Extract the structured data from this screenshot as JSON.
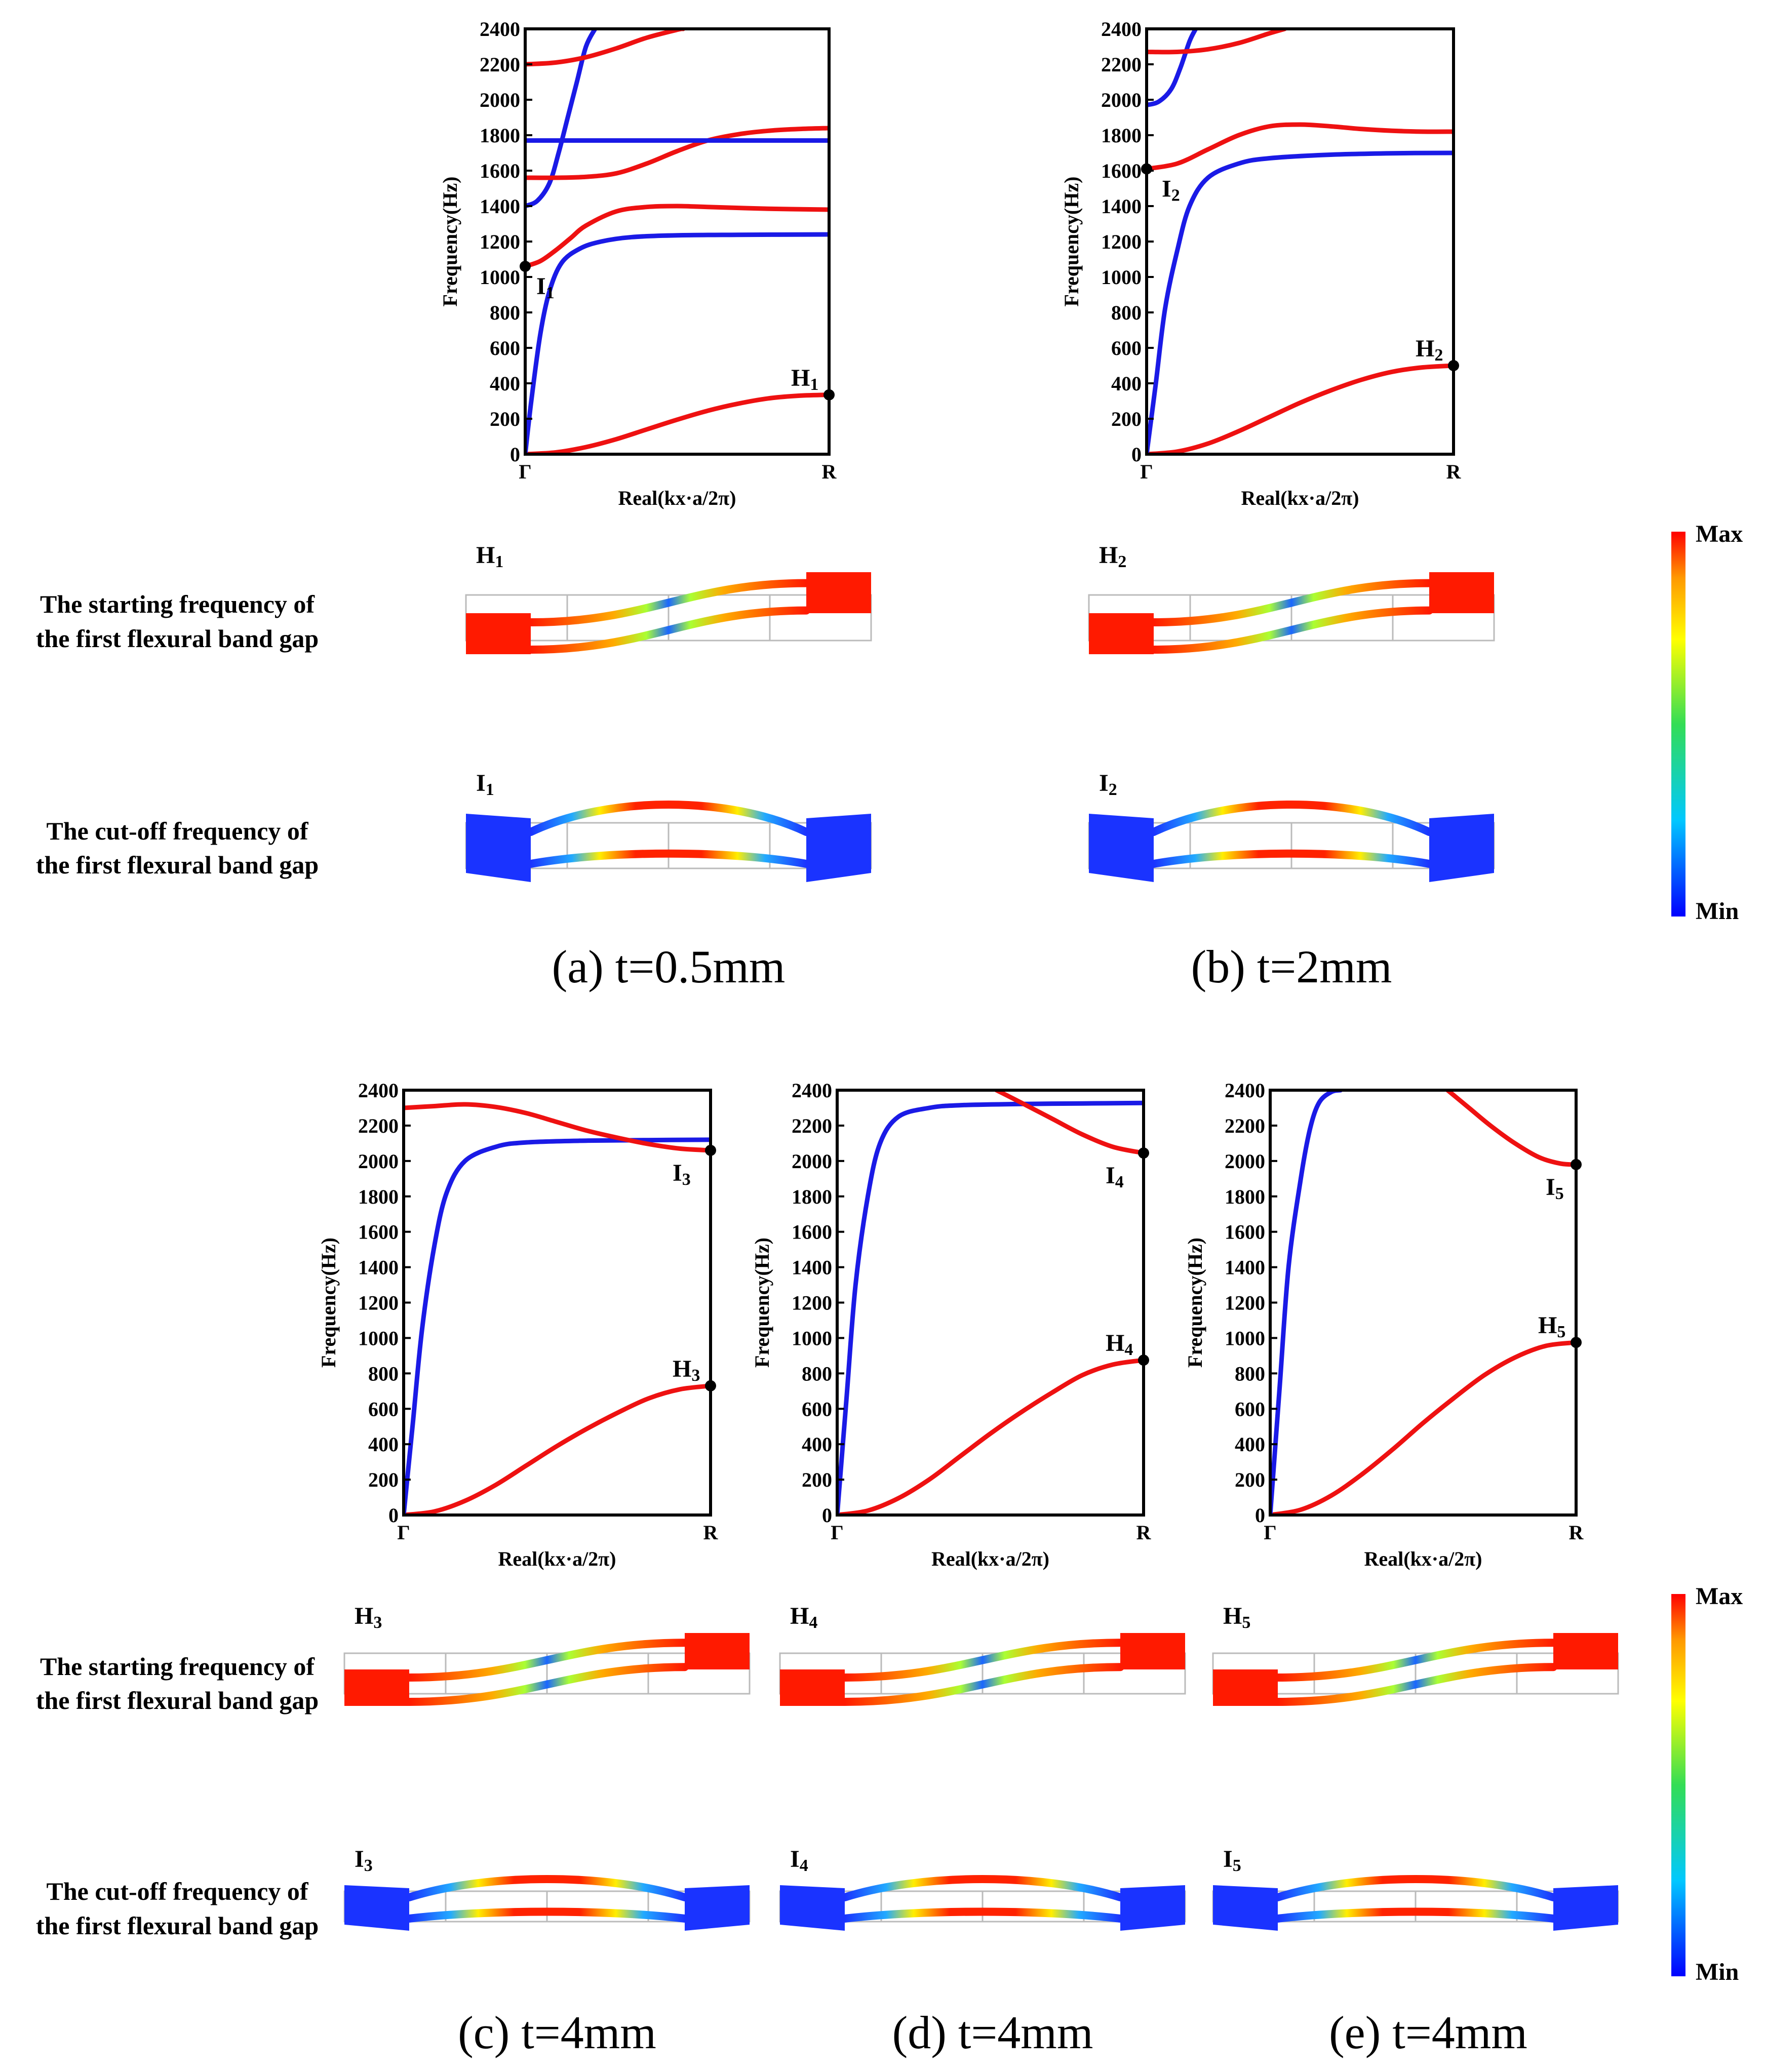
{
  "colors": {
    "series1": "#ee1111",
    "series2": "#1a1ae6",
    "axis": "#000000"
  },
  "row_labels": {
    "start_line1": "The starting frequency of",
    "start_line2": "the first flexural band gap",
    "cut_line1": "The cut-off frequency of",
    "cut_line2": "the first flexural band gap"
  },
  "colorbar": {
    "max": "Max",
    "min": "Min"
  },
  "mode_labels": {
    "H": [
      "H",
      "H",
      "H",
      "H",
      "H"
    ],
    "I": [
      "I",
      "I",
      "I",
      "I",
      "I"
    ],
    "subs": [
      "1",
      "2",
      "3",
      "4",
      "5"
    ]
  },
  "chart_data": [
    {
      "type": "line",
      "caption": "(a) t=0.5mm",
      "ylabel": "Frequency(Hz)",
      "xlabel": "Real(kx·a/2π)",
      "xticks": [
        "Γ",
        "R"
      ],
      "xlim": [
        0,
        1
      ],
      "ylim": [
        0,
        2400
      ],
      "yticks": [
        0,
        200,
        400,
        600,
        800,
        1000,
        1200,
        1400,
        1600,
        1800,
        2000,
        2200,
        2400
      ],
      "series": [
        {
          "name": "red-1",
          "color": "red",
          "x": [
            0,
            0.1,
            0.2,
            0.3,
            0.4,
            0.5,
            0.6,
            0.7,
            0.8,
            0.9,
            1.0
          ],
          "y": [
            0,
            10,
            40,
            85,
            140,
            195,
            245,
            285,
            315,
            330,
            335
          ]
        },
        {
          "name": "blue-1",
          "color": "blue",
          "x": [
            0,
            0.02,
            0.05,
            0.08,
            0.12,
            0.18,
            0.25,
            0.35,
            0.5,
            0.7,
            1.0
          ],
          "y": [
            0,
            300,
            680,
            920,
            1080,
            1160,
            1200,
            1225,
            1235,
            1238,
            1240
          ]
        },
        {
          "name": "red-2",
          "color": "red",
          "x": [
            0,
            0.05,
            0.1,
            0.15,
            0.2,
            0.3,
            0.4,
            0.5,
            0.6,
            0.8,
            1.0
          ],
          "y": [
            1060,
            1090,
            1150,
            1220,
            1290,
            1370,
            1395,
            1400,
            1395,
            1385,
            1380
          ]
        },
        {
          "name": "blue-2",
          "color": "blue",
          "x": [
            0,
            0.04,
            0.08,
            0.11,
            0.14,
            0.17,
            0.2,
            0.23
          ],
          "y": [
            1400,
            1430,
            1530,
            1700,
            1900,
            2100,
            2300,
            2400
          ]
        },
        {
          "name": "red-3",
          "color": "red",
          "x": [
            0,
            0.1,
            0.2,
            0.3,
            0.4,
            0.5,
            0.6,
            0.7,
            0.8,
            0.9,
            1.0
          ],
          "y": [
            1560,
            1560,
            1565,
            1585,
            1640,
            1710,
            1770,
            1805,
            1825,
            1835,
            1840
          ]
        },
        {
          "name": "blue-3",
          "color": "blue",
          "x": [
            0,
            1.0
          ],
          "y": [
            1770,
            1770
          ]
        },
        {
          "name": "red-4",
          "color": "red",
          "x": [
            0,
            0.1,
            0.2,
            0.3,
            0.4,
            0.5,
            0.52
          ],
          "y": [
            2200,
            2210,
            2240,
            2290,
            2350,
            2395,
            2400
          ]
        }
      ],
      "markers": [
        {
          "kind": "H",
          "idx": 0,
          "x": 1.0,
          "y": 335
        },
        {
          "kind": "I",
          "idx": 0,
          "x": 0,
          "y": 1060
        }
      ]
    },
    {
      "type": "line",
      "caption": "(b) t=2mm",
      "ylabel": "Frequency(Hz)",
      "xlabel": "Real(kx·a/2π)",
      "xticks": [
        "Γ",
        "R"
      ],
      "xlim": [
        0,
        1
      ],
      "ylim": [
        0,
        2400
      ],
      "yticks": [
        0,
        200,
        400,
        600,
        800,
        1000,
        1200,
        1400,
        1600,
        1800,
        2000,
        2200,
        2400
      ],
      "series": [
        {
          "name": "red-1",
          "color": "red",
          "x": [
            0,
            0.1,
            0.2,
            0.3,
            0.4,
            0.5,
            0.6,
            0.7,
            0.8,
            0.9,
            1.0
          ],
          "y": [
            0,
            15,
            60,
            130,
            210,
            290,
            360,
            420,
            465,
            490,
            500
          ]
        },
        {
          "name": "blue-1",
          "color": "blue",
          "x": [
            0,
            0.03,
            0.06,
            0.1,
            0.14,
            0.2,
            0.3,
            0.4,
            0.6,
            0.8,
            1.0
          ],
          "y": [
            0,
            400,
            820,
            1150,
            1400,
            1560,
            1640,
            1670,
            1690,
            1698,
            1700
          ]
        },
        {
          "name": "red-2",
          "color": "red",
          "x": [
            0,
            0.1,
            0.2,
            0.3,
            0.4,
            0.5,
            0.6,
            0.7,
            0.8,
            0.9,
            1.0
          ],
          "y": [
            1610,
            1640,
            1720,
            1800,
            1850,
            1860,
            1850,
            1835,
            1825,
            1820,
            1820
          ]
        },
        {
          "name": "blue-2",
          "color": "blue",
          "x": [
            0,
            0.04,
            0.08,
            0.11,
            0.14,
            0.16
          ],
          "y": [
            1970,
            1990,
            2060,
            2180,
            2330,
            2400
          ]
        },
        {
          "name": "red-3",
          "color": "red",
          "x": [
            0,
            0.1,
            0.2,
            0.3,
            0.4,
            0.45
          ],
          "y": [
            2270,
            2270,
            2285,
            2320,
            2375,
            2400
          ]
        }
      ],
      "markers": [
        {
          "kind": "H",
          "idx": 1,
          "x": 1.0,
          "y": 500
        },
        {
          "kind": "I",
          "idx": 1,
          "x": 0,
          "y": 1610
        }
      ]
    },
    {
      "type": "line",
      "caption": "(c) t=4mm",
      "ylabel": "Frequency(Hz)",
      "xlabel": "Real(kx·a/2π)",
      "xticks": [
        "Γ",
        "R"
      ],
      "xlim": [
        0,
        1
      ],
      "ylim": [
        0,
        2400
      ],
      "yticks": [
        0,
        200,
        400,
        600,
        800,
        1000,
        1200,
        1400,
        1600,
        1800,
        2000,
        2200,
        2400
      ],
      "series": [
        {
          "name": "red-1",
          "color": "red",
          "x": [
            0,
            0.1,
            0.2,
            0.3,
            0.4,
            0.5,
            0.6,
            0.7,
            0.8,
            0.9,
            1.0
          ],
          "y": [
            0,
            20,
            80,
            170,
            280,
            390,
            490,
            580,
            660,
            710,
            730
          ]
        },
        {
          "name": "blue-1",
          "color": "blue",
          "x": [
            0,
            0.03,
            0.06,
            0.1,
            0.14,
            0.2,
            0.3,
            0.4,
            0.6,
            0.8,
            1.0
          ],
          "y": [
            0,
            520,
            1050,
            1520,
            1820,
            2000,
            2080,
            2105,
            2115,
            2118,
            2120
          ]
        },
        {
          "name": "red-2",
          "color": "red",
          "x": [
            0,
            0.1,
            0.2,
            0.3,
            0.4,
            0.5,
            0.6,
            0.7,
            0.8,
            0.9,
            1.0
          ],
          "y": [
            2300,
            2310,
            2320,
            2305,
            2270,
            2220,
            2170,
            2130,
            2095,
            2070,
            2060
          ]
        }
      ],
      "markers": [
        {
          "kind": "H",
          "idx": 2,
          "x": 1.0,
          "y": 730
        },
        {
          "kind": "I",
          "idx": 2,
          "x": 1.0,
          "y": 2060
        }
      ]
    },
    {
      "type": "line",
      "caption": "(d) t=4mm",
      "ylabel": "Frequency(Hz)",
      "xlabel": "Real(kx·a/2π)",
      "xticks": [
        "Γ",
        "R"
      ],
      "xlim": [
        0,
        1
      ],
      "ylim": [
        0,
        2400
      ],
      "yticks": [
        0,
        200,
        400,
        600,
        800,
        1000,
        1200,
        1400,
        1600,
        1800,
        2000,
        2200,
        2400
      ],
      "series": [
        {
          "name": "red-1",
          "color": "red",
          "x": [
            0,
            0.1,
            0.2,
            0.3,
            0.4,
            0.5,
            0.6,
            0.7,
            0.8,
            0.9,
            1.0
          ],
          "y": [
            0,
            25,
            95,
            200,
            330,
            460,
            580,
            690,
            790,
            850,
            875
          ]
        },
        {
          "name": "blue-1",
          "color": "blue",
          "x": [
            0,
            0.03,
            0.06,
            0.1,
            0.14,
            0.2,
            0.3,
            0.4,
            0.6,
            0.8,
            1.0
          ],
          "y": [
            0,
            650,
            1300,
            1800,
            2100,
            2250,
            2300,
            2315,
            2322,
            2325,
            2328
          ]
        },
        {
          "name": "red-2",
          "color": "red",
          "x": [
            0.52,
            0.6,
            0.7,
            0.8,
            0.9,
            1.0
          ],
          "y": [
            2400,
            2330,
            2240,
            2150,
            2080,
            2045
          ]
        }
      ],
      "markers": [
        {
          "kind": "H",
          "idx": 3,
          "x": 1.0,
          "y": 875
        },
        {
          "kind": "I",
          "idx": 3,
          "x": 1.0,
          "y": 2045
        }
      ]
    },
    {
      "type": "line",
      "caption": "(e) t=4mm",
      "ylabel": "Frequency(Hz)",
      "xlabel": "Real(kx·a/2π)",
      "xticks": [
        "Γ",
        "R"
      ],
      "xlim": [
        0,
        1
      ],
      "ylim": [
        0,
        2400
      ],
      "yticks": [
        0,
        200,
        400,
        600,
        800,
        1000,
        1200,
        1400,
        1600,
        1800,
        2000,
        2200,
        2400
      ],
      "series": [
        {
          "name": "red-1",
          "color": "red",
          "x": [
            0,
            0.1,
            0.2,
            0.3,
            0.4,
            0.5,
            0.6,
            0.7,
            0.8,
            0.9,
            1.0
          ],
          "y": [
            0,
            30,
            110,
            230,
            370,
            520,
            660,
            790,
            890,
            955,
            975
          ]
        },
        {
          "name": "blue-1",
          "color": "blue",
          "x": [
            0,
            0.03,
            0.06,
            0.1,
            0.13,
            0.16,
            0.2,
            0.23
          ],
          "y": [
            0,
            700,
            1400,
            1900,
            2180,
            2330,
            2390,
            2400
          ]
        },
        {
          "name": "red-2",
          "color": "red",
          "x": [
            0.58,
            0.65,
            0.72,
            0.8,
            0.88,
            0.95,
            1.0
          ],
          "y": [
            2400,
            2300,
            2200,
            2100,
            2020,
            1985,
            1980
          ]
        }
      ],
      "markers": [
        {
          "kind": "H",
          "idx": 4,
          "x": 1.0,
          "y": 975
        },
        {
          "kind": "I",
          "idx": 4,
          "x": 1.0,
          "y": 1980
        }
      ]
    }
  ]
}
